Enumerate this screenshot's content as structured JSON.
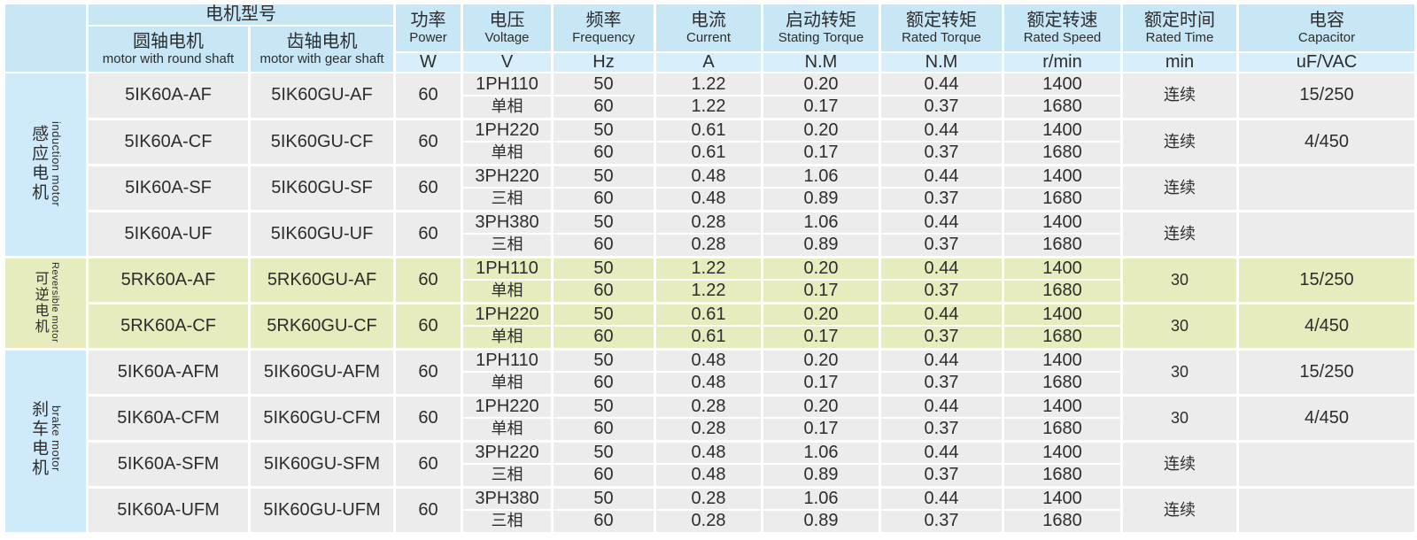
{
  "colors": {
    "header_blue": "#c7e6f6",
    "unit_blue": "#d8eefb",
    "label_blue": "#cfeafa",
    "row_gray": "#ececec",
    "section_green": "#e6ecbe",
    "border_white": "#ffffff",
    "text": "#2d2d2d"
  },
  "table": {
    "header": {
      "model_group_zh": "电机型号",
      "columns": {
        "round_shaft": {
          "zh": "圆轴电机",
          "en": "motor with round shaft"
        },
        "gear_shaft": {
          "zh": "齿轴电机",
          "en": "motor with gear shaft"
        },
        "power": {
          "zh": "功率",
          "en": "Power",
          "unit": "W"
        },
        "voltage": {
          "zh": "电压",
          "en": "Voltage",
          "unit": "V"
        },
        "frequency": {
          "zh": "频率",
          "en": "Frequency",
          "unit": "Hz"
        },
        "current": {
          "zh": "电流",
          "en": "Current",
          "unit": "A"
        },
        "starting_torque": {
          "zh": "启动转矩",
          "en": "Stating Torque",
          "unit": "N.M"
        },
        "rated_torque": {
          "zh": "额定转矩",
          "en": "Rated Torque",
          "unit": "N.M"
        },
        "rated_speed": {
          "zh": "额定转速",
          "en": "Rated Speed",
          "unit": "r/min"
        },
        "rated_time": {
          "zh": "额定时间",
          "en": "Rated Time",
          "unit": "min"
        },
        "capacitor": {
          "zh": "电容",
          "en": "Capacitor",
          "unit": "uF/VAC"
        }
      }
    },
    "sections": [
      {
        "id": "induction",
        "label_zh": "感应电机",
        "label_en": "induction motor",
        "theme": "blue",
        "rows": [
          {
            "round": "5IK60A-AF",
            "gear": "5IK60GU-AF",
            "power": "60",
            "voltage": [
              "1PH110",
              "单相"
            ],
            "frequency": [
              "50",
              "60"
            ],
            "current": [
              "1.22",
              "1.22"
            ],
            "starting_torque": [
              "0.20",
              "0.17"
            ],
            "rated_torque": [
              "0.44",
              "0.37"
            ],
            "rated_speed": [
              "1400",
              "1680"
            ],
            "rated_time": "连续",
            "capacitor": "15/250"
          },
          {
            "round": "5IK60A-CF",
            "gear": "5IK60GU-CF",
            "power": "60",
            "voltage": [
              "1PH220",
              "单相"
            ],
            "frequency": [
              "50",
              "60"
            ],
            "current": [
              "0.61",
              "0.61"
            ],
            "starting_torque": [
              "0.20",
              "0.17"
            ],
            "rated_torque": [
              "0.44",
              "0.37"
            ],
            "rated_speed": [
              "1400",
              "1680"
            ],
            "rated_time": "连续",
            "capacitor": "4/450"
          },
          {
            "round": "5IK60A-SF",
            "gear": "5IK60GU-SF",
            "power": "60",
            "voltage": [
              "3PH220",
              "三相"
            ],
            "frequency": [
              "50",
              "60"
            ],
            "current": [
              "0.48",
              "0.48"
            ],
            "starting_torque": [
              "1.06",
              "0.89"
            ],
            "rated_torque": [
              "0.44",
              "0.37"
            ],
            "rated_speed": [
              "1400",
              "1680"
            ],
            "rated_time": "连续",
            "capacitor": ""
          },
          {
            "round": "5IK60A-UF",
            "gear": "5IK60GU-UF",
            "power": "60",
            "voltage": [
              "3PH380",
              "三相"
            ],
            "frequency": [
              "50",
              "60"
            ],
            "current": [
              "0.28",
              "0.28"
            ],
            "starting_torque": [
              "1.06",
              "0.89"
            ],
            "rated_torque": [
              "0.44",
              "0.37"
            ],
            "rated_speed": [
              "1400",
              "1680"
            ],
            "rated_time": "连续",
            "capacitor": ""
          }
        ]
      },
      {
        "id": "reversible",
        "label_zh": "可逆电机",
        "label_en": "Reversible motor",
        "theme": "green",
        "rows": [
          {
            "round": "5RK60A-AF",
            "gear": "5RK60GU-AF",
            "power": "60",
            "voltage": [
              "1PH110",
              "单相"
            ],
            "frequency": [
              "50",
              "60"
            ],
            "current": [
              "1.22",
              "1.22"
            ],
            "starting_torque": [
              "0.20",
              "0.17"
            ],
            "rated_torque": [
              "0.44",
              "0.37"
            ],
            "rated_speed": [
              "1400",
              "1680"
            ],
            "rated_time": "30",
            "capacitor": "15/250"
          },
          {
            "round": "5RK60A-CF",
            "gear": "5RK60GU-CF",
            "power": "60",
            "voltage": [
              "1PH220",
              "单相"
            ],
            "frequency": [
              "50",
              "60"
            ],
            "current": [
              "0.61",
              "0.61"
            ],
            "starting_torque": [
              "0.20",
              "0.17"
            ],
            "rated_torque": [
              "0.44",
              "0.37"
            ],
            "rated_speed": [
              "1400",
              "1680"
            ],
            "rated_time": "30",
            "capacitor": "4/450"
          }
        ]
      },
      {
        "id": "brake",
        "label_zh": "刹车电机",
        "label_en": "brake motor",
        "theme": "blue",
        "rows": [
          {
            "round": "5IK60A-AFM",
            "gear": "5IK60GU-AFM",
            "power": "60",
            "voltage": [
              "1PH110",
              "单相"
            ],
            "frequency": [
              "50",
              "60"
            ],
            "current": [
              "0.48",
              "0.48"
            ],
            "starting_torque": [
              "0.20",
              "0.17"
            ],
            "rated_torque": [
              "0.44",
              "0.37"
            ],
            "rated_speed": [
              "1400",
              "1680"
            ],
            "rated_time": "30",
            "capacitor": "15/250"
          },
          {
            "round": "5IK60A-CFM",
            "gear": "5IK60GU-CFM",
            "power": "60",
            "voltage": [
              "1PH220",
              "单相"
            ],
            "frequency": [
              "50",
              "60"
            ],
            "current": [
              "0.28",
              "0.28"
            ],
            "starting_torque": [
              "0.20",
              "0.17"
            ],
            "rated_torque": [
              "0.44",
              "0.37"
            ],
            "rated_speed": [
              "1400",
              "1680"
            ],
            "rated_time": "30",
            "capacitor": "4/450"
          },
          {
            "round": "5IK60A-SFM",
            "gear": "5IK60GU-SFM",
            "power": "60",
            "voltage": [
              "3PH220",
              "三相"
            ],
            "frequency": [
              "50",
              "60"
            ],
            "current": [
              "0.48",
              "0.48"
            ],
            "starting_torque": [
              "1.06",
              "0.89"
            ],
            "rated_torque": [
              "0.44",
              "0.37"
            ],
            "rated_speed": [
              "1400",
              "1680"
            ],
            "rated_time": "连续",
            "capacitor": ""
          },
          {
            "round": "5IK60A-UFM",
            "gear": "5IK60GU-UFM",
            "power": "60",
            "voltage": [
              "3PH380",
              "三相"
            ],
            "frequency": [
              "50",
              "60"
            ],
            "current": [
              "0.28",
              "0.28"
            ],
            "starting_torque": [
              "1.06",
              "0.89"
            ],
            "rated_torque": [
              "0.44",
              "0.37"
            ],
            "rated_speed": [
              "1400",
              "1680"
            ],
            "rated_time": "连续",
            "capacitor": ""
          }
        ]
      }
    ]
  }
}
